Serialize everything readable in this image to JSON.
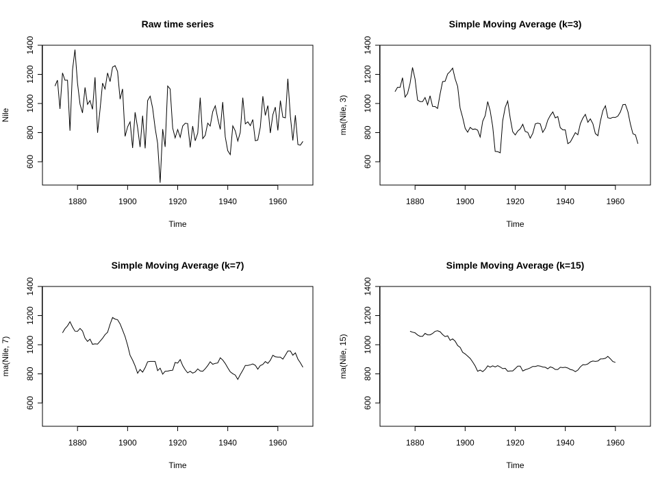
{
  "chart_data": [
    {
      "type": "line",
      "title": "Raw time series",
      "xlabel": "Time",
      "ylabel": "Nile",
      "xlim": [
        1866,
        1974
      ],
      "ylim": [
        440,
        1400
      ],
      "xticks": [
        1880,
        1900,
        1920,
        1940,
        1960
      ],
      "yticks": [
        600,
        800,
        1000,
        1200,
        1400
      ],
      "x_start": 1871,
      "values": [
        1120,
        1160,
        963,
        1210,
        1160,
        1160,
        813,
        1230,
        1370,
        1140,
        995,
        935,
        1110,
        994,
        1020,
        960,
        1180,
        799,
        958,
        1140,
        1100,
        1210,
        1150,
        1250,
        1260,
        1220,
        1030,
        1100,
        774,
        840,
        874,
        694,
        940,
        833,
        701,
        916,
        692,
        1020,
        1050,
        969,
        831,
        726,
        456,
        824,
        702,
        1120,
        1100,
        832,
        764,
        821,
        768,
        845,
        864,
        862,
        698,
        845,
        744,
        796,
        1040,
        759,
        781,
        865,
        845,
        944,
        984,
        897,
        822,
        1010,
        771,
        676,
        649,
        846,
        812,
        742,
        801,
        1040,
        860,
        874,
        848,
        890,
        744,
        749,
        838,
        1050,
        918,
        986,
        797,
        923,
        975,
        815,
        1020,
        906,
        901,
        1170,
        912,
        746,
        919,
        718,
        714,
        740
      ]
    },
    {
      "type": "line",
      "title": "Simple Moving Average (k=3)",
      "xlabel": "Time",
      "ylabel": "ma(Nile, 3)",
      "xlim": [
        1866,
        1974
      ],
      "ylim": [
        440,
        1400
      ],
      "xticks": [
        1880,
        1900,
        1920,
        1940,
        1960
      ],
      "yticks": [
        600,
        800,
        1000,
        1200,
        1400
      ],
      "x_start": 1872,
      "values": [
        1081,
        1111,
        1111,
        1177,
        1044,
        1068,
        1138,
        1247,
        1168,
        1023,
        1013,
        1013,
        1041,
        991,
        1053,
        980,
        979,
        966,
        1066,
        1150,
        1153,
        1203,
        1220,
        1243,
        1170,
        1117,
        968,
        904,
        829,
        803,
        836,
        822,
        825,
        817,
        770,
        878,
        916,
        1013,
        950,
        842,
        671,
        669,
        661,
        882,
        974,
        1017,
        899,
        806,
        784,
        811,
        826,
        857,
        808,
        802,
        762,
        795,
        860,
        865,
        860,
        802,
        830,
        885,
        918,
        942,
        901,
        910,
        834,
        819,
        819,
        724,
        736,
        767,
        800,
        785,
        861,
        900,
        925,
        871,
        894,
        861,
        794,
        779,
        879,
        951,
        984,
        902,
        898,
        905,
        904,
        914,
        942,
        992,
        994,
        943,
        859,
        792,
        784,
        724
      ]
    },
    {
      "type": "line",
      "title": "Simple Moving Average (k=7)",
      "xlabel": "Time",
      "ylabel": "ma(Nile, 7)",
      "xlim": [
        1866,
        1974
      ],
      "ylim": [
        440,
        1400
      ],
      "xticks": [
        1880,
        1900,
        1920,
        1940,
        1960
      ],
      "yticks": [
        600,
        800,
        1000,
        1200,
        1400
      ],
      "x_start": 1874,
      "values": [
        1082,
        1110,
        1130,
        1158,
        1122,
        1093,
        1092,
        1112,
        1094,
        1045,
        1023,
        1038,
        1003,
        1006,
        1004,
        1024,
        1044,
        1069,
        1085,
        1141,
        1187,
        1176,
        1172,
        1143,
        1101,
        1056,
        996,
        927,
        894,
        855,
        804,
        830,
        812,
        843,
        883,
        885,
        885,
        885,
        822,
        839,
        798,
        818,
        819,
        823,
        825,
        878,
        874,
        898,
        857,
        828,
        807,
        818,
        805,
        813,
        834,
        820,
        818,
        835,
        857,
        883,
        866,
        872,
        875,
        910,
        895,
        871,
        842,
        814,
        801,
        792,
        762,
        795,
        825,
        858,
        858,
        862,
        868,
        859,
        832,
        857,
        865,
        884,
        872,
        893,
        928,
        917,
        915,
        915,
        901,
        928,
        957,
        957,
        928,
        944,
        901,
        876,
        845
      ]
    },
    {
      "type": "line",
      "title": "Simple Moving Average (k=15)",
      "xlabel": "Time",
      "ylabel": "ma(Nile, 15)",
      "xlim": [
        1866,
        1974
      ],
      "ylim": [
        440,
        1400
      ],
      "xticks": [
        1880,
        1900,
        1920,
        1940,
        1960
      ],
      "yticks": [
        600,
        800,
        1000,
        1200,
        1400
      ],
      "x_start": 1878,
      "values": [
        1092,
        1086,
        1082,
        1067,
        1058,
        1058,
        1078,
        1068,
        1068,
        1077,
        1092,
        1096,
        1089,
        1070,
        1056,
        1061,
        1030,
        1040,
        1025,
        995,
        982,
        948,
        937,
        922,
        906,
        882,
        854,
        818,
        826,
        815,
        830,
        855,
        846,
        855,
        847,
        856,
        847,
        836,
        838,
        818,
        820,
        820,
        836,
        853,
        853,
        820,
        828,
        834,
        841,
        851,
        851,
        856,
        853,
        847,
        845,
        835,
        848,
        842,
        830,
        830,
        845,
        843,
        845,
        840,
        830,
        826,
        815,
        826,
        848,
        863,
        862,
        868,
        882,
        888,
        885,
        888,
        902,
        903,
        907,
        920,
        903,
        884,
        879
      ]
    }
  ]
}
